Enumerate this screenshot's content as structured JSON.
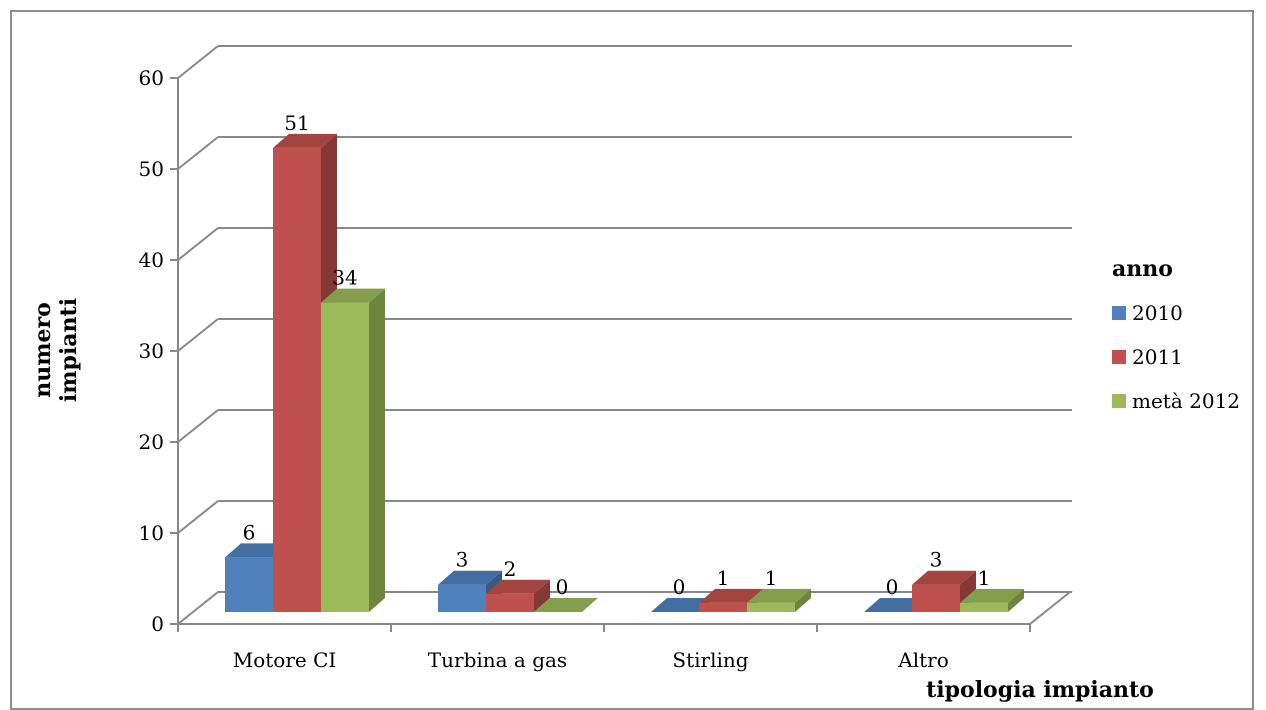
{
  "chart_data": {
    "type": "bar",
    "categories": [
      "Motore CI",
      "Turbina a gas",
      "Stirling",
      "Altro"
    ],
    "series": [
      {
        "name": "2010",
        "values": [
          6,
          3,
          0,
          0
        ],
        "color": "#4f81bd"
      },
      {
        "name": "2011",
        "values": [
          51,
          2,
          1,
          3
        ],
        "color": "#c0504d"
      },
      {
        "name": "metà 2012",
        "values": [
          34,
          0,
          1,
          1
        ],
        "color": "#9bbb59"
      }
    ],
    "ylabel": "numero impianti",
    "ylabel_lines": [
      "numero",
      "impianti"
    ],
    "xlabel": "tipologia impianto",
    "legend_title": "anno",
    "legend_position": "right",
    "ylim": [
      0,
      60
    ],
    "yticks": [
      0,
      10,
      20,
      30,
      40,
      50,
      60
    ],
    "grid": true,
    "style": "3d-clustered-column"
  }
}
